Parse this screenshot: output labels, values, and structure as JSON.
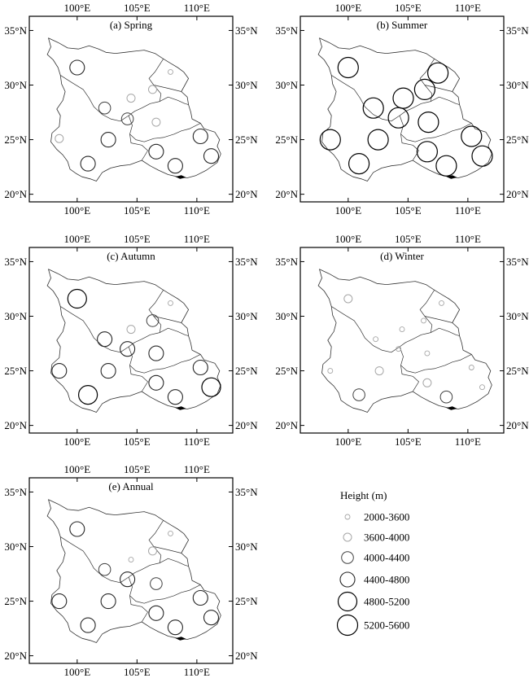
{
  "axes": {
    "x_ticks": [
      "100°E",
      "105°E",
      "110°E"
    ],
    "y_ticks": [
      "35°N",
      "30°N",
      "25°N",
      "20°N"
    ]
  },
  "panels": [
    {
      "title": "(a) Spring",
      "stations": [
        {
          "lon": 100.0,
          "lat": 31.6,
          "cls": 3
        },
        {
          "lon": 107.8,
          "lat": 31.2,
          "cls": 0
        },
        {
          "lon": 106.3,
          "lat": 29.6,
          "cls": 1
        },
        {
          "lon": 104.5,
          "lat": 28.8,
          "cls": 1
        },
        {
          "lon": 102.3,
          "lat": 27.9,
          "cls": 2
        },
        {
          "lon": 104.2,
          "lat": 26.9,
          "cls": 2
        },
        {
          "lon": 106.6,
          "lat": 26.6,
          "cls": 1
        },
        {
          "lon": 98.5,
          "lat": 25.1,
          "cls": 1
        },
        {
          "lon": 102.6,
          "lat": 25.0,
          "cls": 3
        },
        {
          "lon": 106.6,
          "lat": 23.9,
          "cls": 3
        },
        {
          "lon": 110.3,
          "lat": 25.3,
          "cls": 3
        },
        {
          "lon": 100.9,
          "lat": 22.8,
          "cls": 3
        },
        {
          "lon": 108.2,
          "lat": 22.6,
          "cls": 3
        },
        {
          "lon": 111.2,
          "lat": 23.5,
          "cls": 3
        }
      ]
    },
    {
      "title": "(b) Summer",
      "stations": [
        {
          "lon": 100.0,
          "lat": 31.6,
          "cls": 5
        },
        {
          "lon": 107.5,
          "lat": 31.1,
          "cls": 5
        },
        {
          "lon": 106.4,
          "lat": 29.6,
          "cls": 5
        },
        {
          "lon": 104.6,
          "lat": 28.8,
          "cls": 5
        },
        {
          "lon": 102.1,
          "lat": 27.9,
          "cls": 5
        },
        {
          "lon": 104.2,
          "lat": 27.0,
          "cls": 5
        },
        {
          "lon": 106.7,
          "lat": 26.6,
          "cls": 5
        },
        {
          "lon": 98.5,
          "lat": 25.0,
          "cls": 5
        },
        {
          "lon": 102.5,
          "lat": 25.0,
          "cls": 5
        },
        {
          "lon": 106.6,
          "lat": 23.9,
          "cls": 5
        },
        {
          "lon": 110.3,
          "lat": 25.3,
          "cls": 5
        },
        {
          "lon": 100.9,
          "lat": 22.8,
          "cls": 5
        },
        {
          "lon": 108.2,
          "lat": 22.6,
          "cls": 5
        },
        {
          "lon": 111.2,
          "lat": 23.5,
          "cls": 5
        }
      ]
    },
    {
      "title": "(c) Autumn",
      "stations": [
        {
          "lon": 100.0,
          "lat": 31.6,
          "cls": 4
        },
        {
          "lon": 107.8,
          "lat": 31.2,
          "cls": 0
        },
        {
          "lon": 106.3,
          "lat": 29.6,
          "cls": 2
        },
        {
          "lon": 104.5,
          "lat": 28.8,
          "cls": 1
        },
        {
          "lon": 102.3,
          "lat": 27.9,
          "cls": 3
        },
        {
          "lon": 104.2,
          "lat": 27.0,
          "cls": 3
        },
        {
          "lon": 106.6,
          "lat": 26.6,
          "cls": 3
        },
        {
          "lon": 98.5,
          "lat": 25.0,
          "cls": 3
        },
        {
          "lon": 102.6,
          "lat": 25.0,
          "cls": 3
        },
        {
          "lon": 106.6,
          "lat": 23.9,
          "cls": 3
        },
        {
          "lon": 110.3,
          "lat": 25.3,
          "cls": 3
        },
        {
          "lon": 100.9,
          "lat": 22.8,
          "cls": 4
        },
        {
          "lon": 108.2,
          "lat": 22.6,
          "cls": 3
        },
        {
          "lon": 111.2,
          "lat": 23.5,
          "cls": 4
        }
      ]
    },
    {
      "title": "(d) Winter",
      "stations": [
        {
          "lon": 100.0,
          "lat": 31.6,
          "cls": 1
        },
        {
          "lon": 107.8,
          "lat": 31.2,
          "cls": 0
        },
        {
          "lon": 106.3,
          "lat": 29.6,
          "cls": 0
        },
        {
          "lon": 104.5,
          "lat": 28.8,
          "cls": 0
        },
        {
          "lon": 102.3,
          "lat": 27.9,
          "cls": 0
        },
        {
          "lon": 104.2,
          "lat": 27.0,
          "cls": 0
        },
        {
          "lon": 106.6,
          "lat": 26.6,
          "cls": 0
        },
        {
          "lon": 98.5,
          "lat": 25.0,
          "cls": 0
        },
        {
          "lon": 102.6,
          "lat": 25.0,
          "cls": 1
        },
        {
          "lon": 106.6,
          "lat": 23.9,
          "cls": 1
        },
        {
          "lon": 110.3,
          "lat": 25.3,
          "cls": 0
        },
        {
          "lon": 100.9,
          "lat": 22.8,
          "cls": 2
        },
        {
          "lon": 108.2,
          "lat": 22.6,
          "cls": 2
        },
        {
          "lon": 111.2,
          "lat": 23.5,
          "cls": 0
        }
      ]
    },
    {
      "title": "(e) Annual",
      "stations": [
        {
          "lon": 100.0,
          "lat": 31.6,
          "cls": 3
        },
        {
          "lon": 107.8,
          "lat": 31.2,
          "cls": 0
        },
        {
          "lon": 106.3,
          "lat": 29.6,
          "cls": 1
        },
        {
          "lon": 104.5,
          "lat": 28.8,
          "cls": 0
        },
        {
          "lon": 102.3,
          "lat": 27.9,
          "cls": 2
        },
        {
          "lon": 104.2,
          "lat": 27.0,
          "cls": 3
        },
        {
          "lon": 106.6,
          "lat": 26.6,
          "cls": 2
        },
        {
          "lon": 98.5,
          "lat": 25.0,
          "cls": 3
        },
        {
          "lon": 102.6,
          "lat": 25.0,
          "cls": 3
        },
        {
          "lon": 106.6,
          "lat": 23.9,
          "cls": 3
        },
        {
          "lon": 110.3,
          "lat": 25.3,
          "cls": 3
        },
        {
          "lon": 100.9,
          "lat": 22.8,
          "cls": 3
        },
        {
          "lon": 108.2,
          "lat": 22.6,
          "cls": 3
        },
        {
          "lon": 111.2,
          "lat": 23.5,
          "cls": 3
        }
      ]
    }
  ],
  "legend": {
    "title": "Height (m)",
    "classes": [
      {
        "label": "2000-3600",
        "color": "#a6a6a6"
      },
      {
        "label": "3600-4000",
        "color": "#a6a6a6"
      },
      {
        "label": "4000-4400",
        "color": "#404040"
      },
      {
        "label": "4400-4800",
        "color": "#262626"
      },
      {
        "label": "4800-5200",
        "color": "#000000"
      },
      {
        "label": "5200-5600",
        "color": "#000000"
      }
    ]
  }
}
